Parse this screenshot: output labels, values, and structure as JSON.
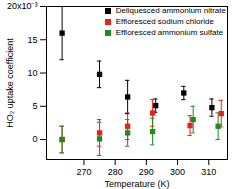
{
  "chart_data": {
    "type": "scatter",
    "x_label": "Temperature (K)",
    "y_label": "HO₂ uptake coefficient",
    "xlim": [
      258,
      316
    ],
    "xticks": [
      270,
      280,
      290,
      300,
      310
    ],
    "ylim": [
      -0.003,
      0.02
    ],
    "yticks": [
      0,
      {
        "value": 0.005,
        "label": "5"
      },
      {
        "value": 0.01,
        "label": "10"
      },
      {
        "value": 0.015,
        "label": "15"
      },
      {
        "value": 0.02,
        "label": "20x10⁻³"
      }
    ],
    "legend": "top-right",
    "marker": "square",
    "series": [
      {
        "name": "Deliquesced ammonium nitrate",
        "color": "#000000",
        "x": [
          263,
          275,
          284,
          293,
          302,
          311
        ],
        "values": [
          0.016,
          0.0098,
          0.0064,
          0.0051,
          0.007,
          0.0048
        ],
        "errors": [
          0.004,
          0.002,
          0.0025,
          0.001,
          0.001,
          0.0013
        ]
      },
      {
        "name": "Effloresced sodium chloride",
        "color": "#e8211d",
        "x": [
          263,
          275,
          284,
          292,
          304,
          314
        ],
        "values": [
          0.0,
          0.001,
          0.002,
          0.004,
          0.0021,
          0.0039
        ],
        "errors": [
          0.002,
          0.002,
          0.002,
          0.002,
          0.0015,
          0.002
        ]
      },
      {
        "name": "Effloresced ammonium sulfate",
        "color": "#1f8a1f",
        "x": [
          263,
          275,
          284,
          292,
          305,
          313
        ],
        "values": [
          0.0,
          0.0001,
          0.001,
          0.0012,
          0.003,
          0.002
        ],
        "errors": [
          0.002,
          0.0025,
          0.002,
          0.002,
          0.002,
          0.002
        ]
      }
    ]
  }
}
